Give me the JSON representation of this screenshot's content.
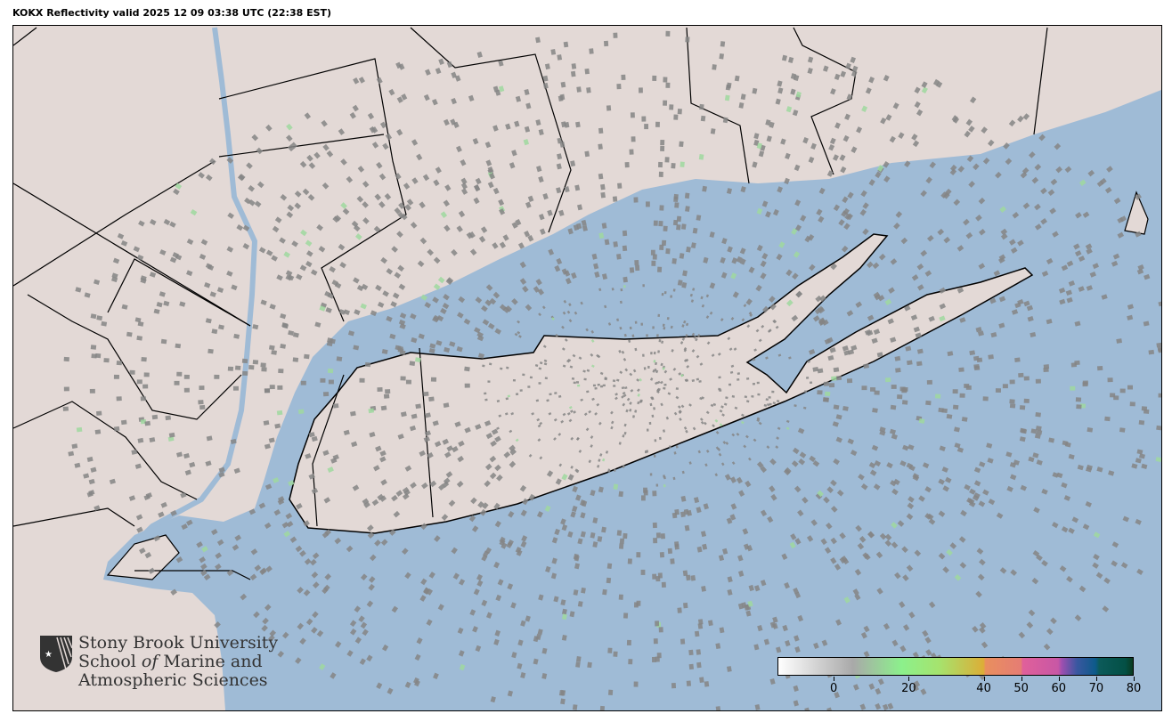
{
  "title": "KOKX Reflectivity valid 2025 12 09 03:38 UTC (22:38 EST)",
  "map": {
    "radar_site": "KOKX",
    "colors": {
      "ocean": "#9fbbd6",
      "land": "#e3d9d6",
      "border": "#000000",
      "echo": "#8a8a8a"
    }
  },
  "colorbar": {
    "min": -15,
    "max": 80,
    "ticks": [
      0,
      20,
      40,
      50,
      60,
      70,
      80
    ],
    "tick_labels": [
      "0",
      "20",
      "40",
      "50",
      "60",
      "70",
      "80"
    ],
    "stops": [
      {
        "v": -15,
        "c": "#ffffff"
      },
      {
        "v": 5,
        "c": "#a9a9a9"
      },
      {
        "v": 18,
        "c": "#8cf08c"
      },
      {
        "v": 28,
        "c": "#a5e36e"
      },
      {
        "v": 40,
        "c": "#dcae37"
      },
      {
        "v": 40.5,
        "c": "#e98f5e"
      },
      {
        "v": 50,
        "c": "#e57d74"
      },
      {
        "v": 50.5,
        "c": "#e0609a"
      },
      {
        "v": 60,
        "c": "#c857a5"
      },
      {
        "v": 61,
        "c": "#9c4fb0"
      },
      {
        "v": 65,
        "c": "#3a57a0"
      },
      {
        "v": 70,
        "c": "#0d5a8a"
      },
      {
        "v": 71,
        "c": "#0c5a5a"
      },
      {
        "v": 78,
        "c": "#035045"
      },
      {
        "v": 80,
        "c": "#0a3a20"
      }
    ]
  },
  "logo": {
    "line1": "Stony Brook University",
    "line2_a": "School ",
    "line2_b": "of",
    "line2_c": " Marine and",
    "line3": "Atmospheric Sciences"
  }
}
